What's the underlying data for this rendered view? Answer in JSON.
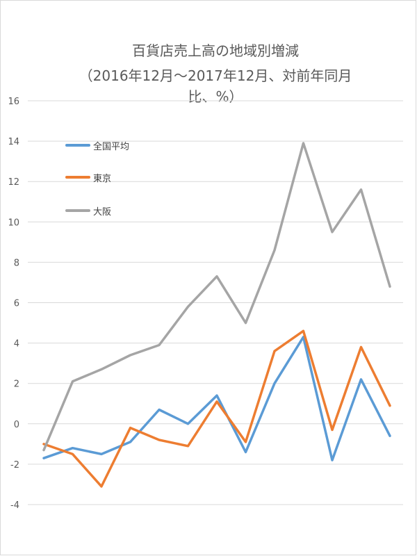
{
  "chart_data": {
    "type": "line",
    "title_lines": [
      "百貨店売上高の地域別増減",
      "（2016年12月～2017年12月、対前年同月",
      "比、%）"
    ],
    "ylim": [
      -4,
      16
    ],
    "yticks": [
      16,
      14,
      12,
      10,
      8,
      6,
      4,
      2,
      0,
      -2,
      -4
    ],
    "grid": true,
    "legend_position": "top-left",
    "series": [
      {
        "name": "全国平均",
        "color": "#5b9bd5",
        "values": [
          -1.7,
          -1.2,
          -1.5,
          -0.9,
          0.7,
          0.0,
          1.4,
          -1.4,
          2.0,
          4.3,
          -1.8,
          2.2,
          -0.6
        ]
      },
      {
        "name": "東京",
        "color": "#ed7d31",
        "values": [
          -1.0,
          -1.5,
          -3.1,
          -0.2,
          -0.8,
          -1.1,
          1.1,
          -0.9,
          3.6,
          4.6,
          -0.3,
          3.8,
          0.9
        ]
      },
      {
        "name": "大阪",
        "color": "#a5a5a5",
        "values": [
          -1.3,
          2.1,
          2.7,
          3.4,
          3.9,
          5.8,
          7.3,
          5.0,
          8.6,
          13.9,
          9.5,
          11.6,
          6.8
        ]
      }
    ]
  }
}
